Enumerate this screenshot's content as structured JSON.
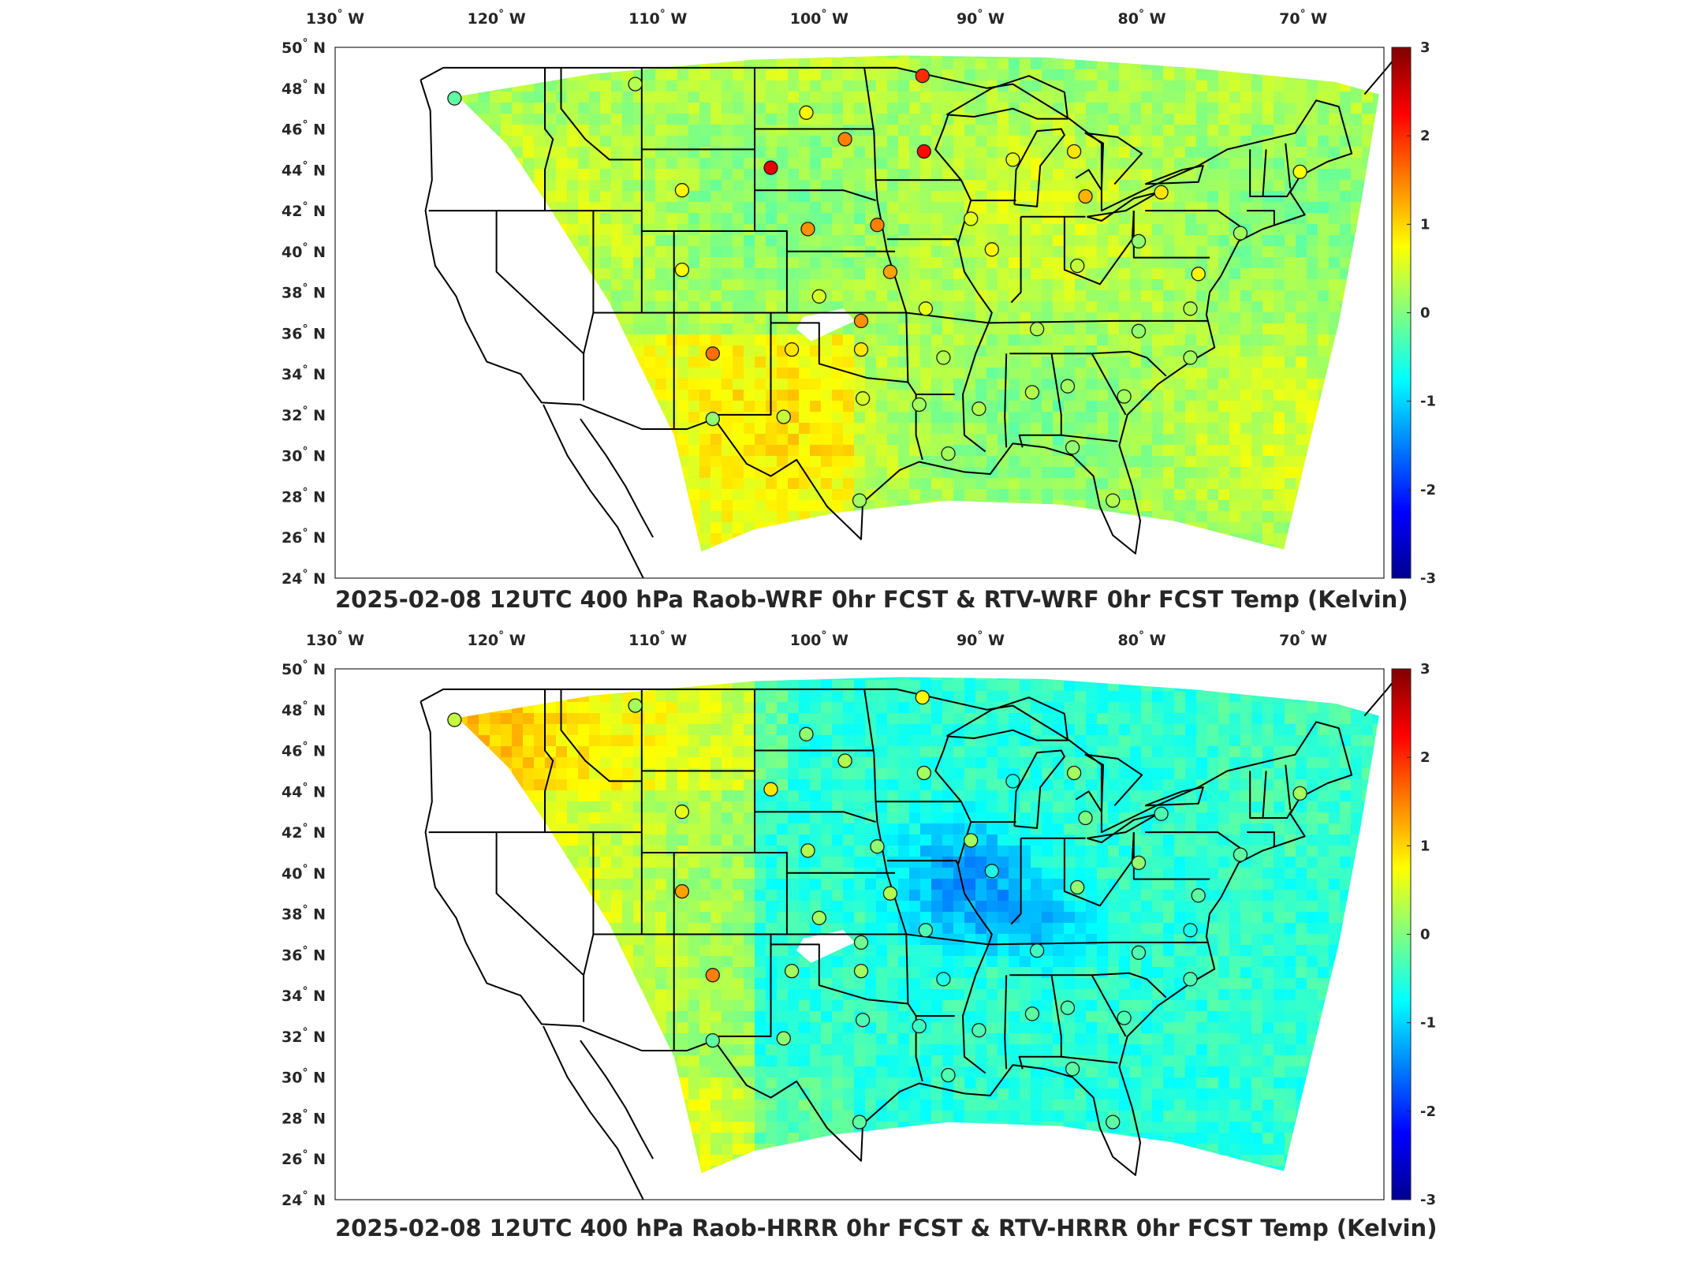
{
  "panels": [
    {
      "title": "2025-02-08 12UTC 400 hPa Raob-WRF 0hr FCST & RTV-WRF 0hr FCST Temp (Kelvin)",
      "field": "wrf",
      "obs": [
        {
          "lon": -122.6,
          "lat": 47.5,
          "v": -0.2
        },
        {
          "lon": -111.4,
          "lat": 48.2,
          "v": 0.3
        },
        {
          "lon": -93.6,
          "lat": 48.6,
          "v": 2.0
        },
        {
          "lon": -100.8,
          "lat": 46.8,
          "v": 0.8
        },
        {
          "lon": -98.4,
          "lat": 45.5,
          "v": 1.5
        },
        {
          "lon": -93.5,
          "lat": 44.9,
          "v": 2.2
        },
        {
          "lon": -103.0,
          "lat": 44.1,
          "v": 2.4
        },
        {
          "lon": -108.5,
          "lat": 43.0,
          "v": 0.8
        },
        {
          "lon": -88.0,
          "lat": 44.5,
          "v": 0.6
        },
        {
          "lon": -84.2,
          "lat": 44.9,
          "v": 0.9
        },
        {
          "lon": -83.5,
          "lat": 42.7,
          "v": 1.2
        },
        {
          "lon": -78.8,
          "lat": 42.9,
          "v": 0.9
        },
        {
          "lon": -70.2,
          "lat": 43.9,
          "v": 0.7
        },
        {
          "lon": -100.7,
          "lat": 41.1,
          "v": 1.4
        },
        {
          "lon": -96.4,
          "lat": 41.3,
          "v": 1.5
        },
        {
          "lon": -90.6,
          "lat": 41.6,
          "v": 0.6
        },
        {
          "lon": -89.3,
          "lat": 40.1,
          "v": 0.8
        },
        {
          "lon": -80.2,
          "lat": 40.5,
          "v": 0.1
        },
        {
          "lon": -73.9,
          "lat": 40.9,
          "v": 0.2
        },
        {
          "lon": -84.0,
          "lat": 39.3,
          "v": 0.4
        },
        {
          "lon": -76.5,
          "lat": 38.9,
          "v": 0.8
        },
        {
          "lon": -108.5,
          "lat": 39.1,
          "v": 0.7
        },
        {
          "lon": -95.6,
          "lat": 39.0,
          "v": 1.3
        },
        {
          "lon": -100.0,
          "lat": 37.8,
          "v": 0.5
        },
        {
          "lon": -93.4,
          "lat": 37.2,
          "v": 0.6
        },
        {
          "lon": -97.4,
          "lat": 36.6,
          "v": 1.4
        },
        {
          "lon": -86.5,
          "lat": 36.2,
          "v": 0.3
        },
        {
          "lon": -80.2,
          "lat": 36.1,
          "v": 0.1
        },
        {
          "lon": -77.0,
          "lat": 37.2,
          "v": 0.3
        },
        {
          "lon": -106.6,
          "lat": 35.0,
          "v": 1.6
        },
        {
          "lon": -101.7,
          "lat": 35.2,
          "v": 0.9
        },
        {
          "lon": -97.4,
          "lat": 35.2,
          "v": 0.9
        },
        {
          "lon": -92.3,
          "lat": 34.8,
          "v": 0.3
        },
        {
          "lon": -77.0,
          "lat": 34.8,
          "v": 0.2
        },
        {
          "lon": -97.3,
          "lat": 32.8,
          "v": 0.5
        },
        {
          "lon": -102.2,
          "lat": 31.9,
          "v": 0.4
        },
        {
          "lon": -106.6,
          "lat": 31.8,
          "v": 0.1
        },
        {
          "lon": -93.8,
          "lat": 32.5,
          "v": 0.2
        },
        {
          "lon": -90.1,
          "lat": 32.3,
          "v": 0.3
        },
        {
          "lon": -86.8,
          "lat": 33.1,
          "v": 0.3
        },
        {
          "lon": -84.6,
          "lat": 33.4,
          "v": 0.2
        },
        {
          "lon": -81.1,
          "lat": 32.9,
          "v": 0.2
        },
        {
          "lon": -92.0,
          "lat": 30.1,
          "v": 0.2
        },
        {
          "lon": -84.3,
          "lat": 30.4,
          "v": 0.1
        },
        {
          "lon": -97.5,
          "lat": 27.8,
          "v": 0.2
        },
        {
          "lon": -81.8,
          "lat": 27.8,
          "v": 0.3
        }
      ]
    },
    {
      "title": "2025-02-08 12UTC 400 hPa Raob-HRRR 0hr FCST & RTV-HRRR 0hr FCST Temp (Kelvin)",
      "field": "hrrr",
      "obs": [
        {
          "lon": -122.6,
          "lat": 47.5,
          "v": 0.4
        },
        {
          "lon": -111.4,
          "lat": 48.2,
          "v": 0.2
        },
        {
          "lon": -93.6,
          "lat": 48.6,
          "v": 0.8
        },
        {
          "lon": -100.8,
          "lat": 46.8,
          "v": 0.1
        },
        {
          "lon": -98.4,
          "lat": 45.5,
          "v": 0.3
        },
        {
          "lon": -93.5,
          "lat": 44.9,
          "v": 0.2
        },
        {
          "lon": -103.0,
          "lat": 44.1,
          "v": 0.9
        },
        {
          "lon": -108.5,
          "lat": 43.0,
          "v": 0.6
        },
        {
          "lon": -88.0,
          "lat": 44.5,
          "v": -0.6
        },
        {
          "lon": -84.2,
          "lat": 44.9,
          "v": 0.2
        },
        {
          "lon": -83.5,
          "lat": 42.7,
          "v": 0.0
        },
        {
          "lon": -78.8,
          "lat": 42.9,
          "v": -0.3
        },
        {
          "lon": -70.2,
          "lat": 43.9,
          "v": 0.2
        },
        {
          "lon": -100.7,
          "lat": 41.1,
          "v": 0.3
        },
        {
          "lon": -96.4,
          "lat": 41.3,
          "v": 0.1
        },
        {
          "lon": -90.6,
          "lat": 41.6,
          "v": 0.2
        },
        {
          "lon": -89.3,
          "lat": 40.1,
          "v": -0.6
        },
        {
          "lon": -80.2,
          "lat": 40.5,
          "v": 0.1
        },
        {
          "lon": -73.9,
          "lat": 40.9,
          "v": -0.2
        },
        {
          "lon": -84.0,
          "lat": 39.3,
          "v": 0.1
        },
        {
          "lon": -76.5,
          "lat": 38.9,
          "v": -0.2
        },
        {
          "lon": -108.5,
          "lat": 39.1,
          "v": 1.3
        },
        {
          "lon": -95.6,
          "lat": 39.0,
          "v": 0.3
        },
        {
          "lon": -100.0,
          "lat": 37.8,
          "v": 0.2
        },
        {
          "lon": -93.4,
          "lat": 37.2,
          "v": -0.3
        },
        {
          "lon": -97.4,
          "lat": 36.6,
          "v": -0.1
        },
        {
          "lon": -86.5,
          "lat": 36.2,
          "v": -0.4
        },
        {
          "lon": -80.2,
          "lat": 36.1,
          "v": -0.3
        },
        {
          "lon": -77.0,
          "lat": 37.2,
          "v": -0.6
        },
        {
          "lon": -106.6,
          "lat": 35.0,
          "v": 1.5
        },
        {
          "lon": -101.7,
          "lat": 35.2,
          "v": 0.2
        },
        {
          "lon": -97.4,
          "lat": 35.2,
          "v": 0.2
        },
        {
          "lon": -92.3,
          "lat": 34.8,
          "v": -0.6
        },
        {
          "lon": -77.0,
          "lat": 34.8,
          "v": -0.3
        },
        {
          "lon": -97.3,
          "lat": 32.8,
          "v": -0.3
        },
        {
          "lon": -102.2,
          "lat": 31.9,
          "v": 0.1
        },
        {
          "lon": -106.6,
          "lat": 31.8,
          "v": -0.2
        },
        {
          "lon": -93.8,
          "lat": 32.5,
          "v": -0.4
        },
        {
          "lon": -90.1,
          "lat": 32.3,
          "v": -0.3
        },
        {
          "lon": -86.8,
          "lat": 33.1,
          "v": -0.2
        },
        {
          "lon": -84.6,
          "lat": 33.4,
          "v": -0.3
        },
        {
          "lon": -81.1,
          "lat": 32.9,
          "v": -0.3
        },
        {
          "lon": -92.0,
          "lat": 30.1,
          "v": -0.3
        },
        {
          "lon": -84.3,
          "lat": 30.4,
          "v": -0.2
        },
        {
          "lon": -97.5,
          "lat": 27.8,
          "v": -0.2
        },
        {
          "lon": -81.8,
          "lat": 27.8,
          "v": -0.2
        }
      ]
    }
  ],
  "lon_ticks": [
    "130",
    "120",
    "110",
    "100",
    "90",
    "80",
    "70"
  ],
  "lon_suffix": "W",
  "lat_ticks": [
    "50",
    "48",
    "46",
    "44",
    "42",
    "40",
    "38",
    "36",
    "34",
    "32",
    "30",
    "28",
    "26",
    "24"
  ],
  "lat_suffix": "N",
  "degree_symbol": "°",
  "colorbar": {
    "min": -3,
    "max": 3,
    "ticks": [
      "3",
      "2",
      "1",
      "0",
      "-1",
      "-2",
      "-3"
    ],
    "colors": [
      "#00008f",
      "#0000ff",
      "#0080ff",
      "#00ffff",
      "#80ff80",
      "#ffff00",
      "#ff8000",
      "#ff0000",
      "#800000"
    ]
  },
  "map": {
    "lon_range": [
      -130,
      -65
    ],
    "lat_range": [
      24,
      50
    ]
  }
}
